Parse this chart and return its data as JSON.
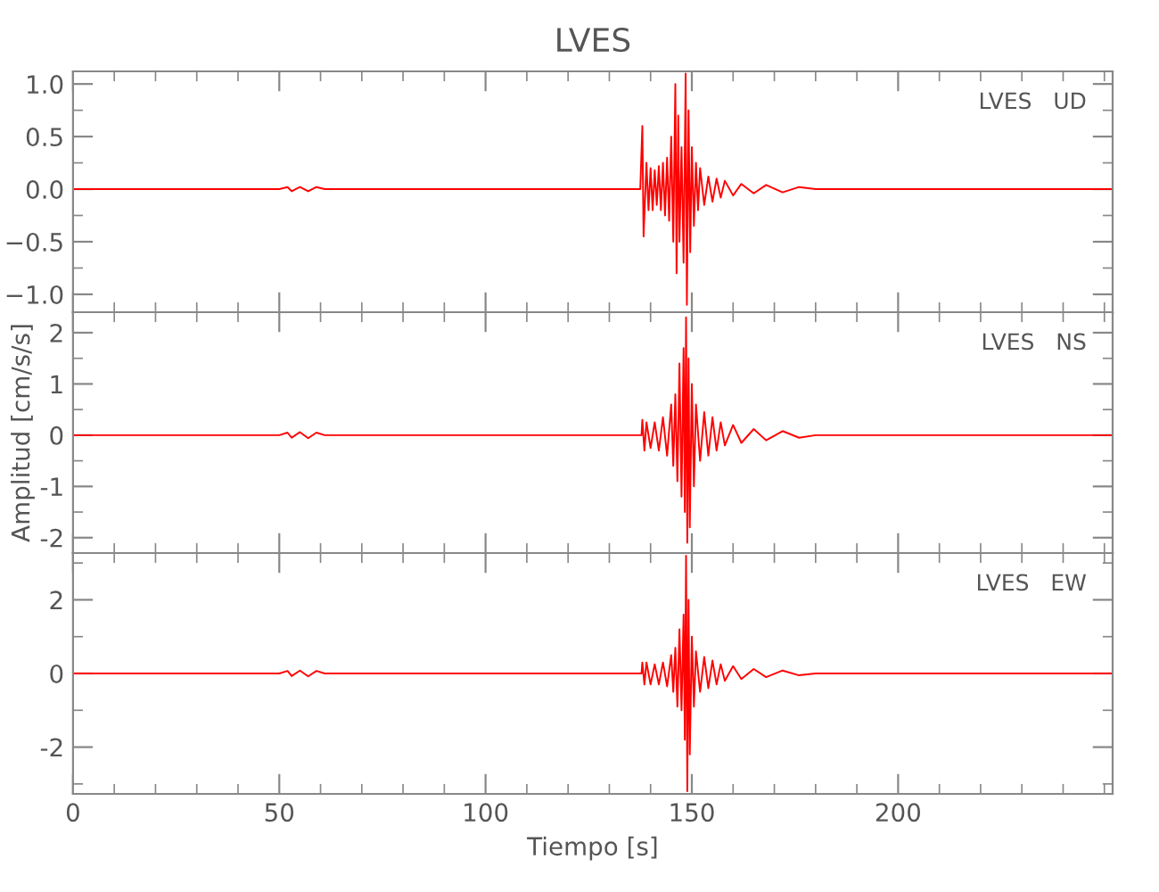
{
  "chart_data": [
    {
      "type": "line",
      "title": "LVES",
      "annotations": [
        "LVES   UD"
      ],
      "tick_labels": "y",
      "grid": false,
      "legend": false,
      "xlim": [
        0,
        252
      ],
      "ylim": [
        -1.17,
        1.12
      ],
      "xticks": [
        0,
        {
          "value": 10,
          "label": null
        },
        {
          "value": 20,
          "label": null
        },
        {
          "value": 30,
          "label": null
        },
        {
          "value": 40,
          "label": null
        },
        50,
        {
          "value": 60,
          "label": null
        },
        {
          "value": 70,
          "label": null
        },
        {
          "value": 80,
          "label": null
        },
        {
          "value": 90,
          "label": null
        },
        100,
        {
          "value": 110,
          "label": null
        },
        {
          "value": 120,
          "label": null
        },
        {
          "value": 130,
          "label": null
        },
        {
          "value": 140,
          "label": null
        },
        150,
        {
          "value": 160,
          "label": null
        },
        {
          "value": 170,
          "label": null
        },
        {
          "value": 180,
          "label": null
        },
        {
          "value": 190,
          "label": null
        },
        200,
        {
          "value": 210,
          "label": null
        },
        {
          "value": 220,
          "label": null
        },
        {
          "value": 230,
          "label": null
        },
        {
          "value": 240,
          "label": null
        },
        {
          "value": 250,
          "label": null
        }
      ],
      "yticks": [
        {
          "value": -1,
          "label": "−1.0"
        },
        {
          "value": -0.75,
          "label": null
        },
        {
          "value": -0.5,
          "label": "−0.5"
        },
        {
          "value": -0.25,
          "label": null
        },
        {
          "value": 0,
          "label": "0.0"
        },
        {
          "value": 0.25,
          "label": null
        },
        {
          "value": 0.5,
          "label": "0.5"
        },
        {
          "value": 0.75,
          "label": null
        },
        {
          "value": 1,
          "label": "1.0"
        }
      ],
      "series": [
        {
          "color": "#ff0000",
          "x": [
            0,
            50,
            52,
            53,
            55,
            57,
            59,
            61,
            137.5,
            138,
            138.3,
            139,
            139.5,
            140,
            140.5,
            141,
            141.5,
            142,
            142.5,
            143,
            143.5,
            144,
            144.5,
            145,
            145.5,
            146,
            146.3,
            146.7,
            147,
            147.5,
            148,
            148.5,
            148.8,
            149.2,
            149.6,
            150,
            150.5,
            151,
            151.5,
            152,
            153,
            154,
            155,
            156,
            157,
            158,
            160,
            162,
            165,
            168,
            172,
            176,
            180,
            252
          ],
          "values": [
            0,
            0,
            0.02,
            -0.02,
            0.02,
            -0.02,
            0.02,
            0,
            0,
            0.6,
            -0.45,
            0.25,
            -0.2,
            0.2,
            -0.2,
            0.18,
            -0.15,
            0.22,
            -0.2,
            0.25,
            -0.25,
            0.3,
            -0.3,
            0.5,
            -0.5,
            1.0,
            -0.8,
            0.7,
            -0.5,
            0.4,
            -0.7,
            1.1,
            -1.1,
            0.75,
            -0.6,
            0.4,
            -0.35,
            0.25,
            -0.2,
            0.2,
            -0.15,
            0.12,
            -0.12,
            0.1,
            -0.08,
            0.08,
            -0.06,
            0.05,
            -0.04,
            0.04,
            -0.03,
            0.02,
            0,
            0
          ]
        }
      ]
    },
    {
      "type": "line",
      "annotations": [
        "LVES   NS"
      ],
      "ylabel": "Amplitud [cm/s/s]",
      "tick_labels": "y",
      "grid": false,
      "legend": false,
      "xlim": [
        0,
        252
      ],
      "ylim": [
        -2.3,
        2.4
      ],
      "xticks": [
        0,
        {
          "value": 10,
          "label": null
        },
        {
          "value": 20,
          "label": null
        },
        {
          "value": 30,
          "label": null
        },
        {
          "value": 40,
          "label": null
        },
        50,
        {
          "value": 60,
          "label": null
        },
        {
          "value": 70,
          "label": null
        },
        {
          "value": 80,
          "label": null
        },
        {
          "value": 90,
          "label": null
        },
        100,
        {
          "value": 110,
          "label": null
        },
        {
          "value": 120,
          "label": null
        },
        {
          "value": 130,
          "label": null
        },
        {
          "value": 140,
          "label": null
        },
        150,
        {
          "value": 160,
          "label": null
        },
        {
          "value": 170,
          "label": null
        },
        {
          "value": 180,
          "label": null
        },
        {
          "value": 190,
          "label": null
        },
        200,
        {
          "value": 210,
          "label": null
        },
        {
          "value": 220,
          "label": null
        },
        {
          "value": 230,
          "label": null
        },
        {
          "value": 240,
          "label": null
        },
        {
          "value": 250,
          "label": null
        }
      ],
      "yticks": [
        -2,
        {
          "value": -1.5,
          "label": null
        },
        -1,
        {
          "value": -0.5,
          "label": null
        },
        0,
        {
          "value": 0.5,
          "label": null
        },
        1,
        {
          "value": 1.5,
          "label": null
        },
        2
      ],
      "series": [
        {
          "color": "#ff0000",
          "x": [
            0,
            50,
            52,
            53,
            55,
            57,
            59,
            61,
            137.8,
            138,
            138.5,
            139,
            140,
            141,
            142,
            143,
            144,
            145,
            145.5,
            146,
            146.5,
            147,
            147.5,
            148,
            148.3,
            148.6,
            148.9,
            149.2,
            149.5,
            150,
            150.5,
            151,
            152,
            153,
            154,
            155,
            156,
            157,
            158,
            160,
            162,
            165,
            168,
            172,
            176,
            180,
            252
          ],
          "values": [
            0,
            0,
            0.05,
            -0.05,
            0.06,
            -0.06,
            0.05,
            0,
            0,
            0.3,
            -0.3,
            0.25,
            -0.25,
            0.25,
            -0.3,
            0.35,
            -0.4,
            0.6,
            -0.6,
            0.8,
            -0.9,
            1.4,
            -1.2,
            1.7,
            -1.5,
            2.3,
            -2.1,
            1.5,
            -1.8,
            1.0,
            -1.0,
            0.6,
            -0.5,
            0.45,
            -0.4,
            0.35,
            -0.3,
            0.25,
            -0.2,
            0.2,
            -0.15,
            0.12,
            -0.1,
            0.08,
            -0.05,
            0,
            0
          ]
        }
      ]
    },
    {
      "type": "line",
      "annotations": [
        "LVES   EW"
      ],
      "xlabel": "Tiempo [s]",
      "grid": false,
      "legend": false,
      "xlim": [
        0,
        252
      ],
      "ylim": [
        -3.27,
        3.27
      ],
      "xticks": [
        0,
        {
          "value": 10,
          "label": null
        },
        {
          "value": 20,
          "label": null
        },
        {
          "value": 30,
          "label": null
        },
        {
          "value": 40,
          "label": null
        },
        50,
        {
          "value": 60,
          "label": null
        },
        {
          "value": 70,
          "label": null
        },
        {
          "value": 80,
          "label": null
        },
        {
          "value": 90,
          "label": null
        },
        100,
        {
          "value": 110,
          "label": null
        },
        {
          "value": 120,
          "label": null
        },
        {
          "value": 130,
          "label": null
        },
        {
          "value": 140,
          "label": null
        },
        150,
        {
          "value": 160,
          "label": null
        },
        {
          "value": 170,
          "label": null
        },
        {
          "value": 180,
          "label": null
        },
        {
          "value": 190,
          "label": null
        },
        200,
        {
          "value": 210,
          "label": null
        },
        {
          "value": 220,
          "label": null
        },
        {
          "value": 230,
          "label": null
        },
        {
          "value": 240,
          "label": null
        },
        {
          "value": 250,
          "label": null
        }
      ],
      "yticks": [
        {
          "value": -3,
          "label": null
        },
        -2,
        {
          "value": -1,
          "label": null
        },
        0,
        {
          "value": 1,
          "label": null
        },
        2,
        {
          "value": 3,
          "label": null
        }
      ],
      "series": [
        {
          "color": "#ff0000",
          "x": [
            0,
            50,
            52,
            53,
            55,
            57,
            59,
            61,
            137.8,
            138,
            138.5,
            139,
            140,
            141,
            142,
            143,
            144,
            145,
            145.5,
            146,
            146.5,
            147,
            147.5,
            148,
            148.3,
            148.6,
            148.9,
            149.2,
            149.5,
            150,
            150.5,
            151,
            152,
            153,
            154,
            155,
            156,
            157,
            158,
            160,
            162,
            165,
            168,
            172,
            176,
            180,
            252
          ],
          "values": [
            0,
            0,
            0.07,
            -0.07,
            0.08,
            -0.08,
            0.07,
            0,
            0,
            0.3,
            -0.3,
            0.3,
            -0.3,
            0.25,
            -0.3,
            0.3,
            -0.35,
            0.5,
            -0.5,
            0.7,
            -0.9,
            1.2,
            -1.0,
            1.6,
            -1.8,
            3.2,
            -3.2,
            2.0,
            -2.2,
            1.0,
            -0.9,
            0.6,
            -0.5,
            0.45,
            -0.4,
            0.35,
            -0.3,
            0.25,
            -0.2,
            0.2,
            -0.15,
            0.12,
            -0.1,
            0.08,
            -0.05,
            0,
            0
          ]
        }
      ]
    }
  ]
}
